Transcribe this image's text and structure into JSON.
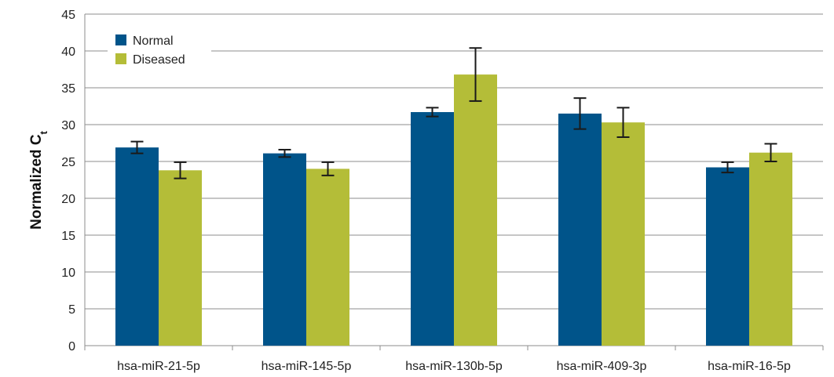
{
  "chart_data": {
    "type": "bar",
    "ylabel": "Normalized C",
    "ylabel_subscript": "t",
    "ylim": [
      0,
      45
    ],
    "yticks": [
      0,
      5,
      10,
      15,
      20,
      25,
      30,
      35,
      40,
      45
    ],
    "grid": true,
    "legend_position": "top-left",
    "categories": [
      "hsa-miR-21-5p",
      "hsa-miR-145-5p",
      "hsa-miR-130b-5p",
      "hsa-miR-409-3p",
      "hsa-miR-16-5p"
    ],
    "series": [
      {
        "name": "Normal",
        "color": "#00548a",
        "values": [
          26.9,
          26.1,
          31.7,
          31.5,
          24.2
        ],
        "error": [
          0.8,
          0.5,
          0.6,
          2.1,
          0.7
        ]
      },
      {
        "name": "Diseased",
        "color": "#b4bd38",
        "values": [
          23.8,
          24.0,
          36.8,
          30.3,
          26.2
        ],
        "error": [
          1.1,
          0.9,
          3.6,
          2.0,
          1.2
        ]
      }
    ]
  }
}
